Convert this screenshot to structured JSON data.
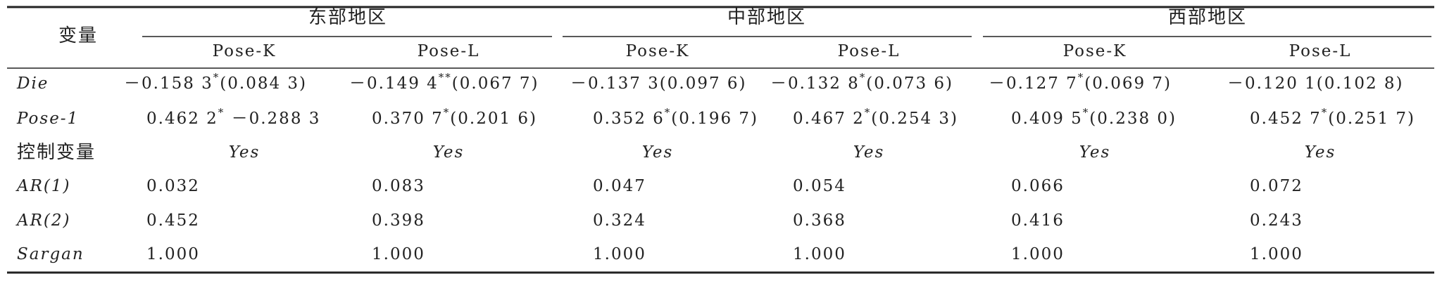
{
  "header": {
    "variable": "变量",
    "groups": [
      {
        "name": "东部地区",
        "columns": [
          "Pose-K",
          "Pose-L"
        ]
      },
      {
        "name": "中部地区",
        "columns": [
          "Pose-K",
          "Pose-L"
        ]
      },
      {
        "name": "西部地区",
        "columns": [
          "Pose-K",
          "Pose-L"
        ]
      }
    ]
  },
  "rows": [
    {
      "label": "Die",
      "cells": [
        "－0.158 3*(0.084 3)",
        "－0.149 4**(0.067 7)",
        "－0.137 3(0.097 6)",
        "－0.132 8*(0.073 6)",
        "－0.127 7*(0.069 7)",
        "－0.120 1(0.102 8)"
      ]
    },
    {
      "label": "Pose-1",
      "cells": [
        "0.462 2* －0.288 3",
        "0.370 7*(0.201 6)",
        "0.352 6*(0.196 7)",
        "0.467 2*(0.254 3)",
        "0.409 5*(0.238 0)",
        "0.452 7*(0.251 7)"
      ]
    },
    {
      "label": "控制变量",
      "cells": [
        "Yes",
        "Yes",
        "Yes",
        "Yes",
        "Yes",
        "Yes"
      ]
    },
    {
      "label": "AR(1)",
      "cells": [
        "0.032",
        "0.083",
        "0.047",
        "0.054",
        "0.066",
        "0.072"
      ]
    },
    {
      "label": "AR(2)",
      "cells": [
        "0.452",
        "0.398",
        "0.324",
        "0.368",
        "0.416",
        "0.243"
      ]
    },
    {
      "label": "Sargan",
      "cells": [
        "1.000",
        "1.000",
        "1.000",
        "1.000",
        "1.000",
        "1.000"
      ]
    }
  ]
}
